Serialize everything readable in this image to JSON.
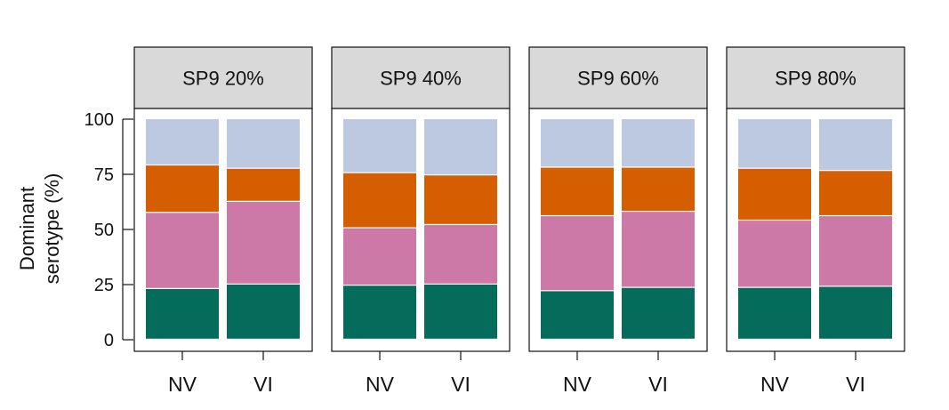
{
  "chart_data": {
    "type": "bar",
    "stacked": true,
    "ylabel_lines": [
      "Dominant",
      "serotype (%)"
    ],
    "ylim": [
      0,
      100
    ],
    "yticks": [
      0,
      25,
      50,
      75,
      100
    ],
    "categories": [
      "NV",
      "VI"
    ],
    "series_colors": [
      "#056b5a",
      "#cc79a7",
      "#d55e00",
      "#bdc9e1"
    ],
    "panels": [
      {
        "title": "SP9 20%",
        "stacks": [
          {
            "category": "NV",
            "segments": [
              23,
              34.5,
              21.5,
              21
            ]
          },
          {
            "category": "VI",
            "segments": [
              25,
              37.5,
              15,
              22.5
            ]
          }
        ]
      },
      {
        "title": "SP9 40%",
        "stacks": [
          {
            "category": "NV",
            "segments": [
              24.5,
              26,
              25,
              24.5
            ]
          },
          {
            "category": "VI",
            "segments": [
              25,
              27,
              22.5,
              25.5
            ]
          }
        ]
      },
      {
        "title": "SP9 60%",
        "stacks": [
          {
            "category": "NV",
            "segments": [
              22,
              34,
              22,
              22
            ]
          },
          {
            "category": "VI",
            "segments": [
              23.5,
              34.5,
              20,
              22
            ]
          }
        ]
      },
      {
        "title": "SP9 80%",
        "stacks": [
          {
            "category": "NV",
            "segments": [
              23.5,
              30.5,
              23.5,
              22.5
            ]
          },
          {
            "category": "VI",
            "segments": [
              24,
              32,
              20.5,
              23.5
            ]
          }
        ]
      }
    ],
    "grid": false,
    "legend": "none"
  }
}
